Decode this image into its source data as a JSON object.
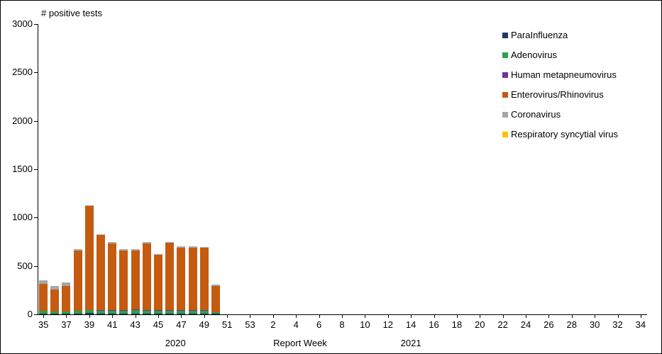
{
  "chart_data": {
    "type": "bar",
    "stacked": true,
    "title": "",
    "ylabel": "# positive tests",
    "xlabel": "Report Week",
    "ylim": [
      0,
      3000
    ],
    "yticks": [
      0,
      500,
      1000,
      1500,
      2000,
      2500,
      3000
    ],
    "grid": false,
    "legend_position": "right-top",
    "weeks": [
      "35",
      "36",
      "37",
      "38",
      "39",
      "40",
      "41",
      "42",
      "43",
      "44",
      "45",
      "46",
      "47",
      "48",
      "49",
      "50",
      "51",
      "52",
      "53",
      "1",
      "2",
      "3",
      "4",
      "5",
      "6",
      "7",
      "8",
      "9",
      "10",
      "11",
      "12",
      "13",
      "14",
      "15",
      "16",
      "17",
      "18",
      "19",
      "20",
      "21",
      "22",
      "23",
      "24",
      "25",
      "26",
      "27",
      "28",
      "29",
      "30",
      "31",
      "32",
      "33",
      "34"
    ],
    "year_labels": [
      {
        "text": "2020",
        "week_index": 11.5
      },
      {
        "text": "2021",
        "week_index": 32
      }
    ],
    "series": [
      {
        "name": "ParaInfluenza",
        "color": "#1F3864",
        "values": [
          10,
          8,
          8,
          10,
          12,
          10,
          10,
          10,
          10,
          10,
          8,
          8,
          8,
          8,
          8,
          5,
          0,
          0,
          0,
          0,
          0,
          0,
          0,
          0,
          0,
          0,
          0,
          0,
          0,
          0,
          0,
          0,
          0,
          0,
          0,
          0,
          0,
          0,
          0,
          0,
          0,
          0,
          0,
          0,
          0,
          0,
          0,
          0,
          0,
          0,
          0,
          0,
          0
        ]
      },
      {
        "name": "Adenovirus",
        "color": "#2CA14A",
        "values": [
          25,
          20,
          22,
          25,
          30,
          30,
          30,
          30,
          35,
          30,
          30,
          30,
          30,
          30,
          30,
          15,
          0,
          0,
          0,
          0,
          0,
          0,
          0,
          0,
          0,
          0,
          0,
          0,
          0,
          0,
          0,
          0,
          0,
          0,
          0,
          0,
          0,
          0,
          0,
          0,
          0,
          0,
          0,
          0,
          0,
          0,
          0,
          0,
          0,
          0,
          0,
          0,
          0
        ]
      },
      {
        "name": "Human metapneumovirus",
        "color": "#7030A0",
        "values": [
          2,
          2,
          2,
          3,
          3,
          3,
          3,
          3,
          3,
          3,
          3,
          3,
          3,
          3,
          3,
          2,
          0,
          0,
          0,
          0,
          0,
          0,
          0,
          0,
          0,
          0,
          0,
          0,
          0,
          0,
          0,
          0,
          0,
          0,
          0,
          0,
          0,
          0,
          0,
          0,
          0,
          0,
          0,
          0,
          0,
          0,
          0,
          0,
          0,
          0,
          0,
          0,
          0
        ]
      },
      {
        "name": "Enterovirus/Rhinovirus",
        "color": "#C55A11",
        "values": [
          280,
          225,
          258,
          622,
          1072,
          777,
          692,
          617,
          612,
          692,
          574,
          699,
          649,
          649,
          644,
          268,
          0,
          0,
          0,
          0,
          0,
          0,
          0,
          0,
          0,
          0,
          0,
          0,
          0,
          0,
          0,
          0,
          0,
          0,
          0,
          0,
          0,
          0,
          0,
          0,
          0,
          0,
          0,
          0,
          0,
          0,
          0,
          0,
          0,
          0,
          0,
          0,
          0
        ]
      },
      {
        "name": "Coronavirus",
        "color": "#A6A6A6",
        "values": [
          33,
          40,
          40,
          10,
          13,
          10,
          10,
          10,
          10,
          10,
          10,
          10,
          10,
          10,
          10,
          20,
          0,
          0,
          0,
          0,
          0,
          0,
          0,
          0,
          0,
          0,
          0,
          0,
          0,
          0,
          0,
          0,
          0,
          0,
          0,
          0,
          0,
          0,
          0,
          0,
          0,
          0,
          0,
          0,
          0,
          0,
          0,
          0,
          0,
          0,
          0,
          0,
          0
        ]
      },
      {
        "name": "Respiratory syncytial virus",
        "color": "#FFC000",
        "values": [
          0,
          0,
          0,
          0,
          0,
          0,
          0,
          0,
          0,
          0,
          0,
          0,
          0,
          0,
          0,
          0,
          0,
          0,
          0,
          0,
          0,
          0,
          0,
          0,
          0,
          0,
          0,
          0,
          0,
          0,
          0,
          0,
          0,
          0,
          0,
          0,
          0,
          0,
          0,
          0,
          0,
          0,
          0,
          0,
          0,
          0,
          0,
          0,
          0,
          0,
          0,
          0,
          0
        ]
      }
    ]
  }
}
